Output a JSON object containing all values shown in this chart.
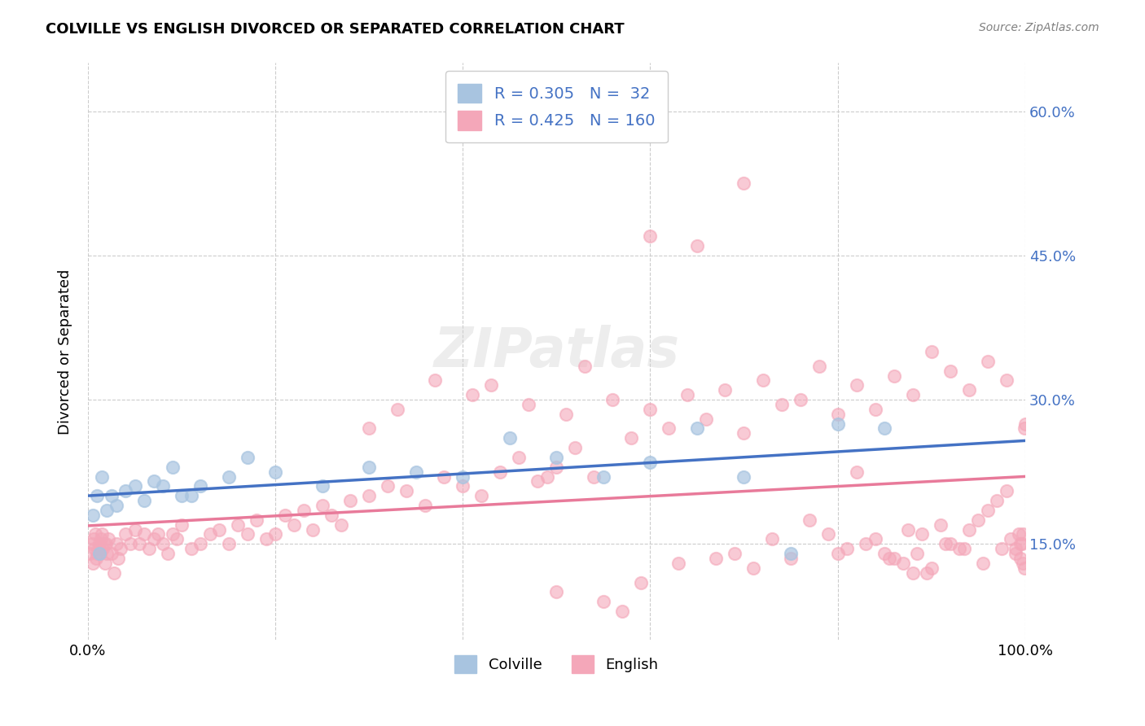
{
  "title": "COLVILLE VS ENGLISH DIVORCED OR SEPARATED CORRELATION CHART",
  "source": "Source: ZipAtlas.com",
  "ylabel": "Divorced or Separated",
  "xlabel": "",
  "xlim": [
    0,
    100
  ],
  "ylim": [
    5,
    65
  ],
  "yticks": [
    15,
    30,
    45,
    60
  ],
  "ytick_labels": [
    "15.0%",
    "30.0%",
    "45.0%",
    "60.0%"
  ],
  "xticks": [
    0,
    100
  ],
  "xtick_labels": [
    "0.0%",
    "100.0%"
  ],
  "colville_color": "#a8c4e0",
  "english_color": "#f4a7b9",
  "colville_line_color": "#4472c4",
  "english_line_color": "#e87a9a",
  "colville_R": 0.305,
  "colville_N": 32,
  "english_R": 0.425,
  "english_N": 160,
  "legend_label_colville": "Colville",
  "legend_label_english": "English",
  "watermark": "ZIPatlas",
  "colville_x": [
    0.5,
    1.0,
    1.2,
    1.5,
    2.0,
    2.5,
    3.0,
    4.0,
    5.0,
    6.0,
    7.0,
    8.0,
    9.0,
    10.0,
    11.0,
    12.0,
    15.0,
    17.0,
    20.0,
    25.0,
    30.0,
    35.0,
    40.0,
    45.0,
    50.0,
    55.0,
    60.0,
    65.0,
    70.0,
    75.0,
    80.0,
    85.0
  ],
  "colville_y": [
    18.0,
    20.0,
    14.0,
    22.0,
    18.5,
    20.0,
    19.0,
    20.5,
    21.0,
    19.5,
    21.5,
    21.0,
    23.0,
    20.0,
    20.0,
    21.0,
    22.0,
    24.0,
    22.5,
    21.0,
    23.0,
    22.5,
    22.0,
    26.0,
    24.0,
    22.0,
    23.5,
    27.0,
    22.0,
    14.0,
    27.5,
    27.0
  ],
  "english_x": [
    0.2,
    0.4,
    0.5,
    0.6,
    0.7,
    0.8,
    0.9,
    1.0,
    1.1,
    1.2,
    1.3,
    1.4,
    1.5,
    1.6,
    1.7,
    1.8,
    1.9,
    2.0,
    2.2,
    2.5,
    2.8,
    3.0,
    3.2,
    3.5,
    4.0,
    4.5,
    5.0,
    5.5,
    6.0,
    6.5,
    7.0,
    7.5,
    8.0,
    8.5,
    9.0,
    9.5,
    10.0,
    11.0,
    12.0,
    13.0,
    14.0,
    15.0,
    16.0,
    17.0,
    18.0,
    19.0,
    20.0,
    21.0,
    22.0,
    23.0,
    24.0,
    25.0,
    26.0,
    27.0,
    28.0,
    30.0,
    32.0,
    34.0,
    36.0,
    38.0,
    40.0,
    42.0,
    44.0,
    46.0,
    48.0,
    50.0,
    52.0,
    54.0,
    56.0,
    58.0,
    60.0,
    62.0,
    64.0,
    66.0,
    68.0,
    70.0,
    72.0,
    74.0,
    76.0,
    78.0,
    80.0,
    82.0,
    84.0,
    86.0,
    88.0,
    90.0,
    92.0,
    94.0,
    96.0,
    98.0,
    99.0,
    99.5,
    99.8,
    99.9,
    60.0,
    65.0,
    70.0,
    75.0,
    80.0,
    82.0,
    85.0,
    86.0,
    87.0,
    88.0,
    89.0,
    90.0,
    91.0,
    92.0,
    93.0,
    94.0,
    95.0,
    96.0,
    97.0,
    98.0,
    99.0,
    99.5,
    99.8,
    99.9,
    50.0,
    55.0,
    57.0,
    59.0,
    63.0,
    67.0,
    69.0,
    71.0,
    73.0,
    77.0,
    79.0,
    81.0,
    83.0,
    84.0,
    85.5,
    87.5,
    88.5,
    89.5,
    91.5,
    93.5,
    95.5,
    97.5,
    98.5,
    99.3,
    99.7,
    30.0,
    33.0,
    37.0,
    41.0,
    43.0,
    47.0,
    49.0,
    51.0,
    53.0,
    100.0
  ],
  "english_y": [
    14.0,
    15.0,
    13.0,
    15.5,
    14.5,
    16.0,
    13.5,
    14.0,
    14.5,
    15.0,
    14.0,
    15.5,
    16.0,
    14.5,
    15.0,
    13.0,
    15.0,
    14.0,
    15.5,
    14.0,
    12.0,
    15.0,
    13.5,
    14.5,
    16.0,
    15.0,
    16.5,
    15.0,
    16.0,
    14.5,
    15.5,
    16.0,
    15.0,
    14.0,
    16.0,
    15.5,
    17.0,
    14.5,
    15.0,
    16.0,
    16.5,
    15.0,
    17.0,
    16.0,
    17.5,
    15.5,
    16.0,
    18.0,
    17.0,
    18.5,
    16.5,
    19.0,
    18.0,
    17.0,
    19.5,
    20.0,
    21.0,
    20.5,
    19.0,
    22.0,
    21.0,
    20.0,
    22.5,
    24.0,
    21.5,
    23.0,
    25.0,
    22.0,
    30.0,
    26.0,
    29.0,
    27.0,
    30.5,
    28.0,
    31.0,
    26.5,
    32.0,
    29.5,
    30.0,
    33.5,
    28.5,
    31.5,
    29.0,
    32.5,
    30.5,
    35.0,
    33.0,
    31.0,
    34.0,
    32.0,
    14.0,
    13.5,
    13.0,
    12.5,
    47.0,
    46.0,
    52.5,
    13.5,
    14.0,
    22.5,
    14.0,
    13.5,
    13.0,
    12.0,
    16.0,
    12.5,
    17.0,
    15.0,
    14.5,
    16.5,
    17.5,
    18.5,
    19.5,
    20.5,
    14.5,
    15.0,
    16.0,
    27.0,
    10.0,
    9.0,
    8.0,
    11.0,
    13.0,
    13.5,
    14.0,
    12.5,
    15.5,
    17.5,
    16.0,
    14.5,
    15.0,
    15.5,
    13.5,
    16.5,
    14.0,
    12.0,
    15.0,
    14.5,
    13.0,
    14.5,
    15.5,
    16.0,
    15.0,
    27.0,
    29.0,
    32.0,
    30.5,
    31.5,
    29.5,
    22.0,
    28.5,
    33.5,
    27.5
  ]
}
